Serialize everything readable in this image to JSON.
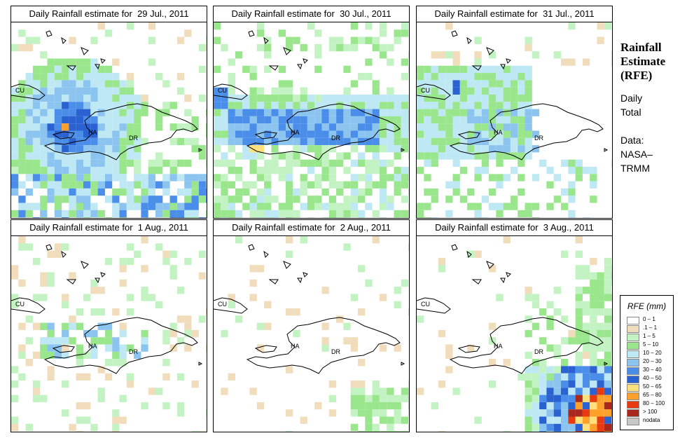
{
  "panels": [
    {
      "title": "Daily Rainfall estimate for  29 Jul., 2011"
    },
    {
      "title": "Daily Rainfall estimate for  30 Jul., 2011"
    },
    {
      "title": "Daily Rainfall estimate for  31 Jul., 2011"
    },
    {
      "title": "Daily Rainfall estimate for  1 Aug., 2011"
    },
    {
      "title": "Daily Rainfall estimate for  2 Aug., 2011"
    },
    {
      "title": "Daily Rainfall estimate for  3 Aug., 2011"
    }
  ],
  "map_labels": {
    "cu": "CU",
    "ha": "HA",
    "dr": "DR"
  },
  "sidebar": {
    "title_line1": "Rainfall",
    "title_line2": "Estimate",
    "title_line3": "(RFE)",
    "daily": "Daily",
    "total": "Total",
    "data": "Data:",
    "nasa": "NASA–",
    "trmm": "TRMM"
  },
  "legend": {
    "title": "RFE (mm)",
    "items": [
      {
        "label": "0 – 1",
        "color": "#ffffff"
      },
      {
        "label": ".1 – 1",
        "color": "#f1dcbc"
      },
      {
        "label": "1 – 5",
        "color": "#c3f2c3"
      },
      {
        "label": "5 – 10",
        "color": "#9ae68c"
      },
      {
        "label": "10 – 20",
        "color": "#bde8f4"
      },
      {
        "label": "20 – 30",
        "color": "#8cc4f0"
      },
      {
        "label": "30 – 40",
        "color": "#4a8eea"
      },
      {
        "label": "40 – 50",
        "color": "#2a62d2"
      },
      {
        "label": "50 – 65",
        "color": "#ffe07a"
      },
      {
        "label": "65 – 80",
        "color": "#ffa02a"
      },
      {
        "label": "80 – 100",
        "color": "#e83a10"
      },
      {
        "label": "> 100",
        "color": "#a8281e"
      },
      {
        "label": "nodata",
        "color": "#c8c8c8"
      }
    ]
  }
}
